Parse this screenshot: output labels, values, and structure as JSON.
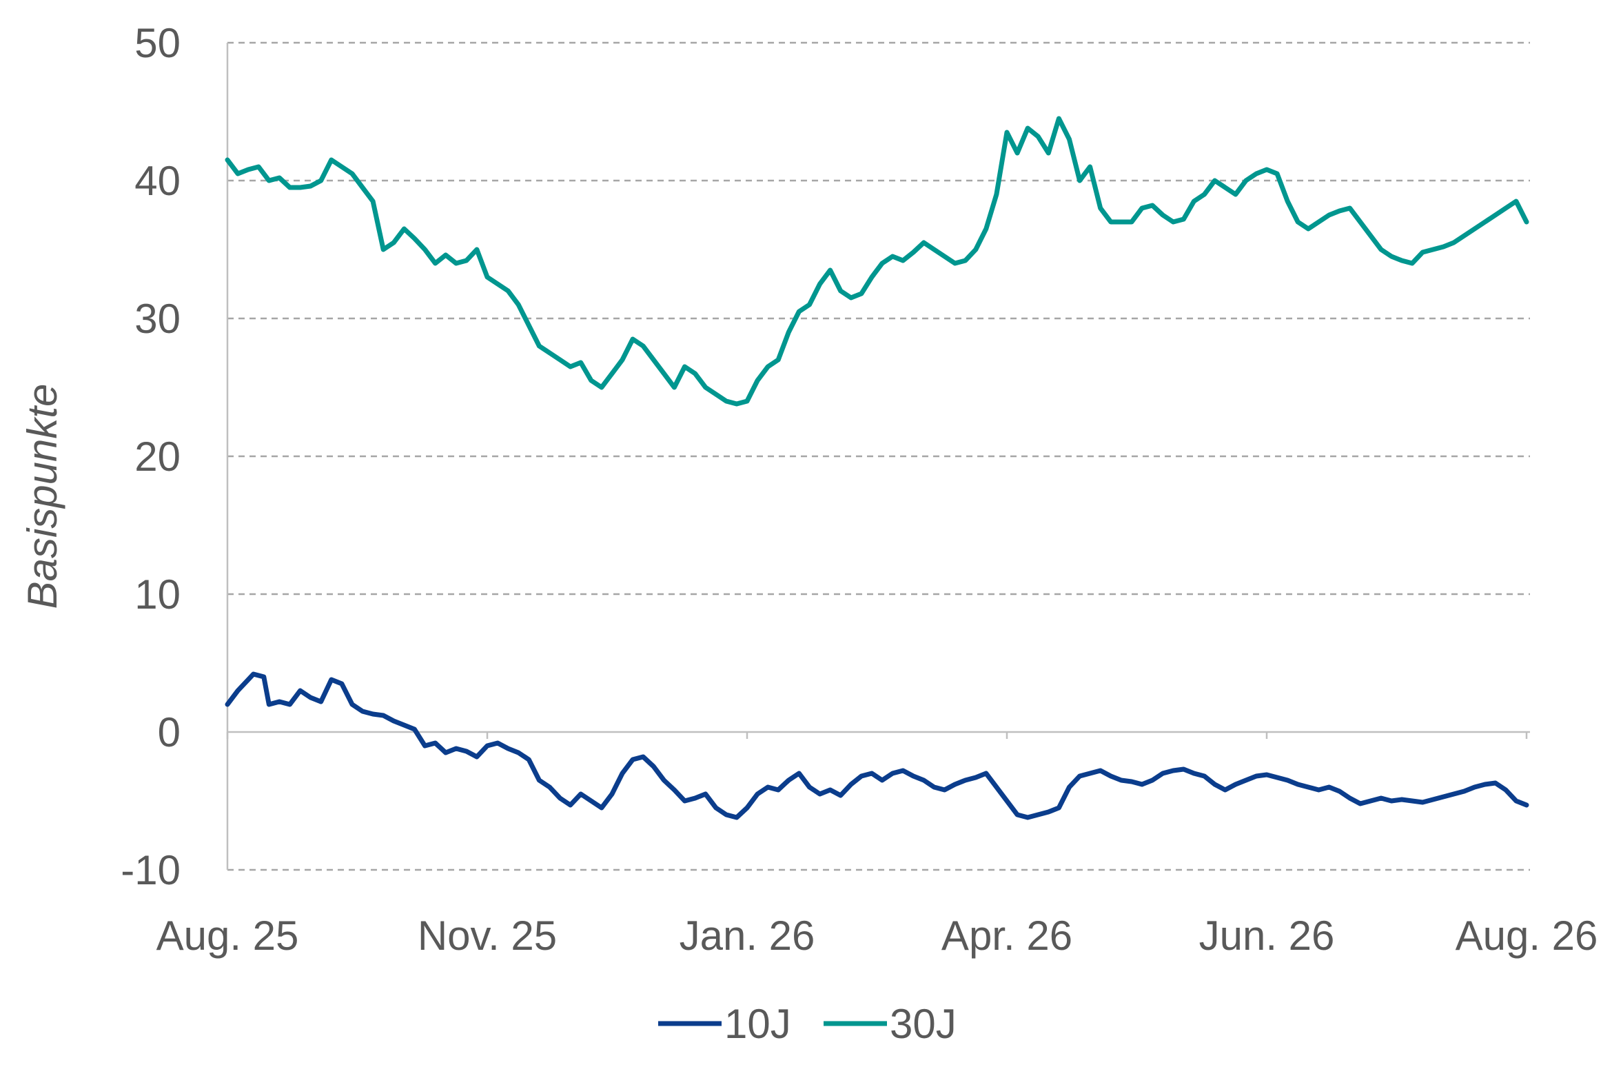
{
  "chart_data": {
    "type": "line",
    "title": "",
    "xlabel": "",
    "ylabel": "Basispunkte",
    "ylim": [
      -10,
      50
    ],
    "yticks": [
      -10,
      0,
      10,
      20,
      30,
      40,
      50
    ],
    "xlim": [
      0,
      250
    ],
    "xtick_labels": [
      {
        "label": "Aug. 25",
        "x": 0
      },
      {
        "label": "Nov. 25",
        "x": 50
      },
      {
        "label": "Jan. 26",
        "x": 100
      },
      {
        "label": "Apr. 26",
        "x": 150
      },
      {
        "label": "Jun. 26",
        "x": 200
      },
      {
        "label": "Aug. 26",
        "x": 250
      }
    ],
    "grid": "horizontal dashed",
    "legend": "bottom",
    "series": [
      {
        "name": "10J",
        "color": "#0b3d8c",
        "points": [
          [
            0,
            2
          ],
          [
            2,
            3
          ],
          [
            4,
            3.8
          ],
          [
            5,
            4.2
          ],
          [
            7,
            4
          ],
          [
            8,
            2
          ],
          [
            10,
            2.2
          ],
          [
            12,
            2
          ],
          [
            14,
            3
          ],
          [
            16,
            2.5
          ],
          [
            18,
            2.2
          ],
          [
            20,
            3.8
          ],
          [
            22,
            3.5
          ],
          [
            24,
            2
          ],
          [
            26,
            1.5
          ],
          [
            28,
            1.3
          ],
          [
            30,
            1.2
          ],
          [
            32,
            0.8
          ],
          [
            34,
            0.5
          ],
          [
            36,
            0.2
          ],
          [
            38,
            -1
          ],
          [
            40,
            -0.8
          ],
          [
            42,
            -1.5
          ],
          [
            44,
            -1.2
          ],
          [
            46,
            -1.4
          ],
          [
            48,
            -1.8
          ],
          [
            50,
            -1
          ],
          [
            52,
            -0.8
          ],
          [
            54,
            -1.2
          ],
          [
            56,
            -1.5
          ],
          [
            58,
            -2
          ],
          [
            60,
            -3.5
          ],
          [
            62,
            -4
          ],
          [
            64,
            -4.8
          ],
          [
            66,
            -5.3
          ],
          [
            68,
            -4.5
          ],
          [
            70,
            -5
          ],
          [
            72,
            -5.5
          ],
          [
            74,
            -4.5
          ],
          [
            76,
            -3
          ],
          [
            78,
            -2
          ],
          [
            80,
            -1.8
          ],
          [
            82,
            -2.5
          ],
          [
            84,
            -3.5
          ],
          [
            86,
            -4.2
          ],
          [
            88,
            -5
          ],
          [
            90,
            -4.8
          ],
          [
            92,
            -4.5
          ],
          [
            94,
            -5.5
          ],
          [
            96,
            -6
          ],
          [
            98,
            -6.2
          ],
          [
            100,
            -5.5
          ],
          [
            102,
            -4.5
          ],
          [
            104,
            -4
          ],
          [
            106,
            -4.2
          ],
          [
            108,
            -3.5
          ],
          [
            110,
            -3
          ],
          [
            112,
            -4
          ],
          [
            114,
            -4.5
          ],
          [
            116,
            -4.2
          ],
          [
            118,
            -4.6
          ],
          [
            120,
            -3.8
          ],
          [
            122,
            -3.2
          ],
          [
            124,
            -3
          ],
          [
            126,
            -3.5
          ],
          [
            128,
            -3
          ],
          [
            130,
            -2.8
          ],
          [
            132,
            -3.2
          ],
          [
            134,
            -3.5
          ],
          [
            136,
            -4
          ],
          [
            138,
            -4.2
          ],
          [
            140,
            -3.8
          ],
          [
            142,
            -3.5
          ],
          [
            144,
            -3.3
          ],
          [
            146,
            -3
          ],
          [
            148,
            -4
          ],
          [
            150,
            -5
          ],
          [
            152,
            -6
          ],
          [
            154,
            -6.2
          ],
          [
            156,
            -6
          ],
          [
            158,
            -5.8
          ],
          [
            160,
            -5.5
          ],
          [
            162,
            -4
          ],
          [
            164,
            -3.2
          ],
          [
            166,
            -3
          ],
          [
            168,
            -2.8
          ],
          [
            170,
            -3.2
          ],
          [
            172,
            -3.5
          ],
          [
            174,
            -3.6
          ],
          [
            176,
            -3.8
          ],
          [
            178,
            -3.5
          ],
          [
            180,
            -3
          ],
          [
            182,
            -2.8
          ],
          [
            184,
            -2.7
          ],
          [
            186,
            -3
          ],
          [
            188,
            -3.2
          ],
          [
            190,
            -3.8
          ],
          [
            192,
            -4.2
          ],
          [
            194,
            -3.8
          ],
          [
            196,
            -3.5
          ],
          [
            198,
            -3.2
          ],
          [
            200,
            -3.1
          ],
          [
            202,
            -3.3
          ],
          [
            204,
            -3.5
          ],
          [
            206,
            -3.8
          ],
          [
            208,
            -4
          ],
          [
            210,
            -4.2
          ],
          [
            212,
            -4
          ],
          [
            214,
            -4.3
          ],
          [
            216,
            -4.8
          ],
          [
            218,
            -5.2
          ],
          [
            220,
            -5
          ],
          [
            222,
            -4.8
          ],
          [
            224,
            -5
          ],
          [
            226,
            -4.9
          ],
          [
            228,
            -5
          ],
          [
            230,
            -5.1
          ],
          [
            232,
            -4.9
          ],
          [
            234,
            -4.7
          ],
          [
            236,
            -4.5
          ],
          [
            238,
            -4.3
          ],
          [
            240,
            -4
          ],
          [
            242,
            -3.8
          ],
          [
            244,
            -3.7
          ],
          [
            246,
            -4.2
          ],
          [
            248,
            -5
          ],
          [
            250,
            -5.3
          ]
        ]
      },
      {
        "name": "30J",
        "color": "#00968f",
        "points": [
          [
            0,
            41.5
          ],
          [
            2,
            40.5
          ],
          [
            4,
            40.8
          ],
          [
            6,
            41
          ],
          [
            8,
            40
          ],
          [
            10,
            40.2
          ],
          [
            12,
            39.5
          ],
          [
            14,
            39.5
          ],
          [
            16,
            39.6
          ],
          [
            18,
            40
          ],
          [
            20,
            41.5
          ],
          [
            22,
            41
          ],
          [
            24,
            40.5
          ],
          [
            26,
            39.5
          ],
          [
            28,
            38.5
          ],
          [
            30,
            35
          ],
          [
            32,
            35.5
          ],
          [
            34,
            36.5
          ],
          [
            36,
            35.8
          ],
          [
            38,
            35
          ],
          [
            40,
            34
          ],
          [
            42,
            34.6
          ],
          [
            44,
            34
          ],
          [
            46,
            34.2
          ],
          [
            48,
            35
          ],
          [
            50,
            33
          ],
          [
            52,
            32.5
          ],
          [
            54,
            32
          ],
          [
            56,
            31
          ],
          [
            58,
            29.5
          ],
          [
            60,
            28
          ],
          [
            62,
            27.5
          ],
          [
            64,
            27
          ],
          [
            66,
            26.5
          ],
          [
            68,
            26.8
          ],
          [
            70,
            25.5
          ],
          [
            72,
            25
          ],
          [
            74,
            26
          ],
          [
            76,
            27
          ],
          [
            78,
            28.5
          ],
          [
            80,
            28
          ],
          [
            82,
            27
          ],
          [
            84,
            26
          ],
          [
            86,
            25
          ],
          [
            88,
            26.5
          ],
          [
            90,
            26
          ],
          [
            92,
            25
          ],
          [
            94,
            24.5
          ],
          [
            96,
            24
          ],
          [
            98,
            23.8
          ],
          [
            100,
            24
          ],
          [
            102,
            25.5
          ],
          [
            104,
            26.5
          ],
          [
            106,
            27
          ],
          [
            108,
            29
          ],
          [
            110,
            30.5
          ],
          [
            112,
            31
          ],
          [
            114,
            32.5
          ],
          [
            116,
            33.5
          ],
          [
            118,
            32
          ],
          [
            120,
            31.5
          ],
          [
            122,
            31.8
          ],
          [
            124,
            33
          ],
          [
            126,
            34
          ],
          [
            128,
            34.5
          ],
          [
            130,
            34.2
          ],
          [
            132,
            34.8
          ],
          [
            134,
            35.5
          ],
          [
            136,
            35
          ],
          [
            138,
            34.5
          ],
          [
            140,
            34
          ],
          [
            142,
            34.2
          ],
          [
            144,
            35
          ],
          [
            146,
            36.5
          ],
          [
            148,
            39
          ],
          [
            150,
            43.5
          ],
          [
            152,
            42
          ],
          [
            154,
            43.8
          ],
          [
            156,
            43.2
          ],
          [
            158,
            42
          ],
          [
            160,
            44.5
          ],
          [
            162,
            43
          ],
          [
            164,
            40
          ],
          [
            166,
            41
          ],
          [
            168,
            38
          ],
          [
            170,
            37
          ],
          [
            172,
            37
          ],
          [
            174,
            37
          ],
          [
            176,
            38
          ],
          [
            178,
            38.2
          ],
          [
            180,
            37.5
          ],
          [
            182,
            37
          ],
          [
            184,
            37.2
          ],
          [
            186,
            38.5
          ],
          [
            188,
            39
          ],
          [
            190,
            40
          ],
          [
            192,
            39.5
          ],
          [
            194,
            39
          ],
          [
            196,
            40
          ],
          [
            198,
            40.5
          ],
          [
            200,
            40.8
          ],
          [
            202,
            40.5
          ],
          [
            204,
            38.5
          ],
          [
            206,
            37
          ],
          [
            208,
            36.5
          ],
          [
            210,
            37
          ],
          [
            212,
            37.5
          ],
          [
            214,
            37.8
          ],
          [
            216,
            38
          ],
          [
            218,
            37
          ],
          [
            220,
            36
          ],
          [
            222,
            35
          ],
          [
            224,
            34.5
          ],
          [
            226,
            34.2
          ],
          [
            228,
            34
          ],
          [
            230,
            34.8
          ],
          [
            232,
            35
          ],
          [
            234,
            35.2
          ],
          [
            236,
            35.5
          ],
          [
            238,
            36
          ],
          [
            240,
            36.5
          ],
          [
            242,
            37
          ],
          [
            244,
            37.5
          ],
          [
            246,
            38
          ],
          [
            248,
            38.5
          ],
          [
            250,
            37
          ]
        ]
      }
    ]
  }
}
